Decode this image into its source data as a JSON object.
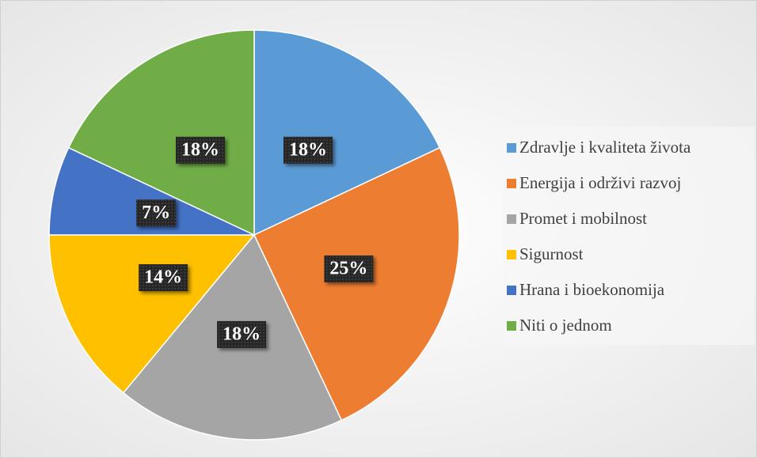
{
  "chart_data": {
    "type": "pie",
    "categories": [
      "Zdravlje i kvaliteta života",
      "Energija i održivi razvoj",
      "Promet i mobilnost",
      "Sigurnost",
      "Hrana i bioekonomija",
      "Niti o jednom"
    ],
    "values": [
      18,
      25,
      18,
      14,
      7,
      18
    ],
    "value_labels": [
      "18%",
      "25%",
      "18%",
      "14%",
      "7%",
      "18%"
    ],
    "colors": [
      "#5b9bd5",
      "#ed7d31",
      "#a5a5a5",
      "#ffc000",
      "#4472c4",
      "#70ad47"
    ],
    "legend": "right"
  }
}
